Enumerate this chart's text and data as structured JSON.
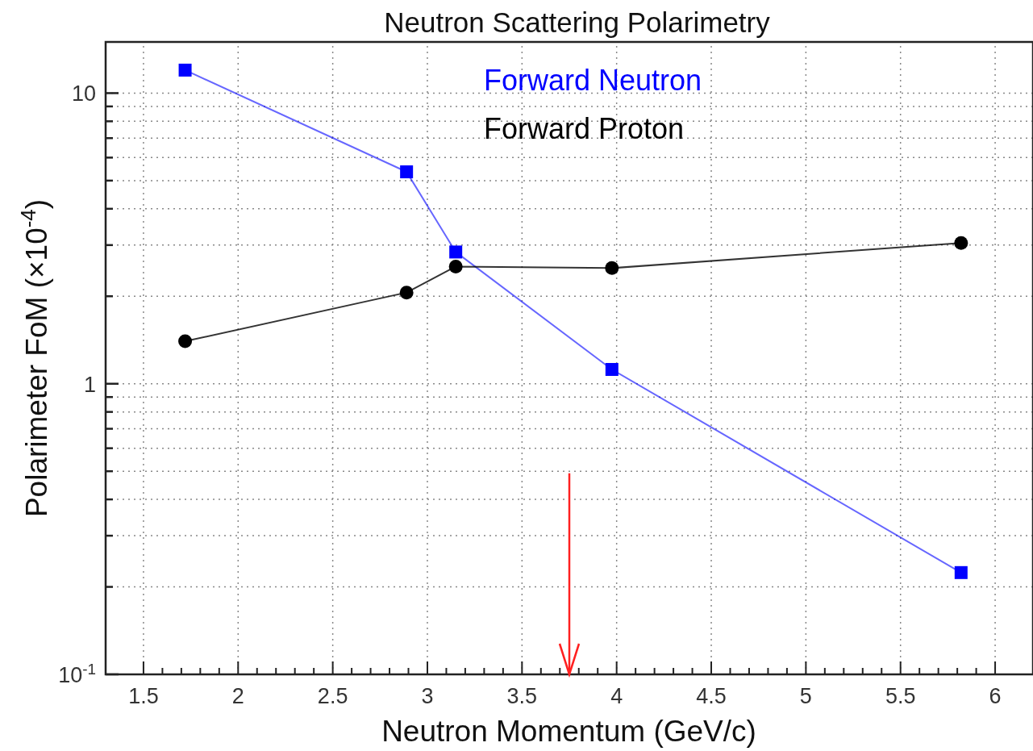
{
  "chart_data": {
    "type": "line",
    "title": "Neutron Scattering Polarimetry",
    "xlabel": "Neutron Momentum (GeV/c)",
    "ylabel": "Polarimeter FoM (×10$^{-4}$)",
    "series": [
      {
        "name": "Forward Neutron",
        "color": "#0000ff",
        "marker": "square",
        "x": [
          1.72,
          2.89,
          3.15,
          3.975,
          5.82
        ],
        "values": [
          12,
          5.36,
          2.84,
          1.12,
          0.224
        ]
      },
      {
        "name": "Forward Proton",
        "color": "#000000",
        "marker": "circle",
        "x": [
          1.72,
          2.89,
          3.15,
          3.975,
          5.82
        ],
        "values": [
          1.4,
          2.06,
          2.53,
          2.5,
          3.05
        ]
      }
    ],
    "log": true,
    "xlim": [
      1.3,
      6.2
    ],
    "ylim": [
      0.1,
      15
    ],
    "xticks": [
      1.5,
      2,
      2.5,
      3,
      3.5,
      4,
      4.5,
      5,
      5.5,
      6
    ],
    "yticks": [
      {
        "value": 0.1,
        "label": "10$^{-1}$"
      },
      {
        "value": 0.2,
        "label": null
      },
      {
        "value": 0.3,
        "label": null
      },
      {
        "value": 0.4,
        "label": null
      },
      {
        "value": 0.5,
        "label": null
      },
      {
        "value": 0.6,
        "label": null
      },
      {
        "value": 0.7,
        "label": null
      },
      {
        "value": 0.8,
        "label": null
      },
      {
        "value": 0.9,
        "label": null
      },
      1,
      {
        "value": 2,
        "label": null
      },
      {
        "value": 3,
        "label": null
      },
      {
        "value": 4,
        "label": null
      },
      {
        "value": 5,
        "label": null
      },
      {
        "value": 6,
        "label": null
      },
      {
        "value": 7,
        "label": null
      },
      {
        "value": 8,
        "label": null
      },
      {
        "value": 9,
        "label": null
      },
      10
    ],
    "grid": true,
    "legend": "top",
    "line_style": "solid",
    "ref_lines": [
      {
        "axis": "x",
        "value": 3.75,
        "color": "#ff2020",
        "line_style": "solid"
      }
    ]
  }
}
